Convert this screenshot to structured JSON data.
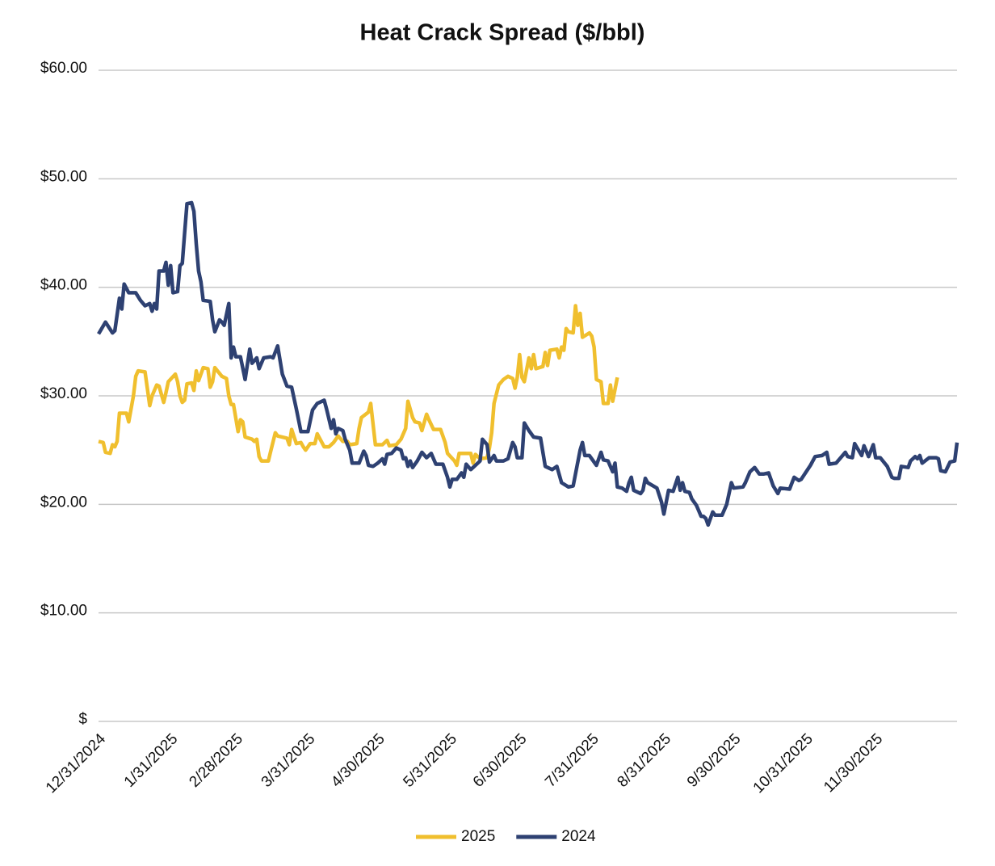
{
  "chart_data": {
    "type": "line",
    "title": "Heat Crack Spread ($/bbl)",
    "xlim": [
      0,
      369
    ],
    "xticks": [
      {
        "value": 0,
        "label": "12/31/2024"
      },
      {
        "value": 31,
        "label": "1/31/2025"
      },
      {
        "value": 59,
        "label": "2/28/2025"
      },
      {
        "value": 90,
        "label": "3/31/2025"
      },
      {
        "value": 120,
        "label": "4/30/2025"
      },
      {
        "value": 151,
        "label": "5/31/2025"
      },
      {
        "value": 181,
        "label": "6/30/2025"
      },
      {
        "value": 212,
        "label": "7/31/2025"
      },
      {
        "value": 243,
        "label": "8/31/2025"
      },
      {
        "value": 273,
        "label": "9/30/2025"
      },
      {
        "value": 304,
        "label": "10/31/2025"
      },
      {
        "value": 334,
        "label": "11/30/2025"
      }
    ],
    "ylim": [
      0,
      60
    ],
    "yticks": [
      {
        "value": 0,
        "label": "$"
      },
      {
        "value": 10,
        "label": "$10.00"
      },
      {
        "value": 20,
        "label": "$20.00"
      },
      {
        "value": 30,
        "label": "$30.00"
      },
      {
        "value": 40,
        "label": "$40.00"
      },
      {
        "value": 50,
        "label": "$50.00"
      },
      {
        "value": 60,
        "label": "$60.00"
      }
    ],
    "grid": true,
    "legend": "bottom",
    "series": [
      {
        "name": "2025",
        "color": "#f0bf2e",
        "x": [
          0,
          2,
          3,
          5,
          6,
          7,
          8,
          9,
          12,
          13,
          15,
          16,
          17,
          20,
          22,
          23,
          25,
          26,
          28,
          29,
          30,
          33,
          34,
          35,
          36,
          37,
          38,
          40,
          41,
          42,
          43,
          45,
          47,
          48,
          49,
          50,
          53,
          55,
          56,
          57,
          58,
          60,
          61,
          62,
          63,
          66,
          67,
          68,
          69,
          70,
          73,
          74,
          76,
          77,
          81,
          82,
          83,
          85,
          87,
          88,
          89,
          91,
          93,
          94,
          97,
          99,
          101,
          103,
          105,
          107,
          108,
          111,
          112,
          113,
          116,
          117,
          119,
          122,
          124,
          125,
          128,
          130,
          132,
          133,
          135,
          136,
          138,
          139,
          141,
          142,
          144,
          147,
          149,
          150,
          153,
          154,
          155,
          160,
          161,
          162,
          164,
          167,
          168,
          169,
          170,
          172,
          174,
          176,
          178,
          179,
          180,
          181,
          182,
          183,
          185,
          186,
          187,
          188,
          191,
          192,
          193,
          194,
          197,
          198,
          199,
          200,
          201,
          202,
          204,
          205,
          206,
          207,
          208,
          211,
          212,
          213,
          214,
          216,
          217,
          219,
          220,
          221,
          223
        ],
        "values": [
          25.8,
          25.7,
          24.8,
          24.7,
          25.5,
          25.3,
          25.8,
          28.4,
          28.4,
          27.6,
          30.0,
          31.8,
          32.3,
          32.2,
          29.1,
          30.0,
          31.0,
          30.9,
          29.4,
          30.3,
          31.3,
          32.0,
          31.3,
          30.0,
          29.4,
          29.6,
          31.1,
          31.2,
          30.5,
          32.3,
          31.4,
          32.6,
          32.5,
          30.8,
          31.3,
          32.6,
          31.8,
          31.6,
          30.0,
          29.2,
          29.2,
          26.7,
          27.8,
          27.6,
          26.2,
          26.0,
          25.8,
          26.0,
          24.4,
          24.0,
          24.0,
          24.9,
          26.6,
          26.3,
          26.1,
          25.5,
          26.9,
          25.6,
          25.7,
          25.3,
          25.0,
          25.6,
          25.6,
          26.5,
          25.3,
          25.3,
          25.7,
          26.3,
          25.8,
          25.8,
          25.5,
          25.6,
          27.0,
          28.0,
          28.5,
          29.3,
          25.5,
          25.5,
          25.9,
          25.4,
          25.5,
          26.0,
          27.0,
          29.5,
          28.0,
          27.6,
          27.5,
          26.8,
          28.3,
          27.8,
          26.9,
          26.9,
          25.7,
          24.7,
          24.0,
          23.6,
          24.7,
          24.7,
          23.8,
          24.6,
          24.2,
          24.3,
          25.2,
          26.6,
          29.3,
          31.0,
          31.5,
          31.8,
          31.6,
          30.7,
          31.7,
          33.8,
          31.7,
          31.3,
          33.5,
          32.5,
          33.8,
          32.5,
          32.7,
          34.0,
          32.8,
          34.2,
          34.3,
          33.5,
          34.5,
          34.2,
          36.2,
          35.9,
          35.8,
          38.3,
          36.5,
          37.6,
          35.4,
          35.8,
          35.5,
          34.5,
          31.5,
          31.3,
          29.3,
          29.3,
          31.0,
          29.5,
          31.7
        ]
      },
      {
        "name": "2024",
        "color": "#2e4172",
        "x": [
          0,
          3,
          6,
          7,
          9,
          10,
          11,
          13,
          16,
          18,
          20,
          22,
          23,
          24,
          25,
          26,
          28,
          29,
          30,
          31,
          32,
          34,
          35,
          36,
          37,
          38,
          40,
          41,
          42,
          43,
          44,
          45,
          48,
          49,
          50,
          52,
          53,
          54,
          56,
          57,
          58,
          59,
          61,
          63,
          65,
          66,
          68,
          69,
          71,
          74,
          75,
          77,
          79,
          81,
          83,
          85,
          87,
          90,
          92,
          94,
          97,
          98,
          100,
          101,
          102,
          103,
          105,
          106,
          108,
          109,
          112,
          114,
          115,
          116,
          118,
          120,
          122,
          123,
          124,
          126,
          128,
          130,
          131,
          132,
          133,
          134,
          135,
          137,
          139,
          141,
          143,
          145,
          148,
          150,
          151,
          152,
          154,
          156,
          157,
          158,
          160,
          162,
          164,
          165,
          167,
          168,
          170,
          171,
          174,
          176,
          178,
          179,
          180,
          182,
          183,
          185,
          187,
          190,
          192,
          195,
          197,
          199,
          202,
          204,
          207,
          208,
          209,
          211,
          214,
          216,
          217,
          219,
          221,
          222,
          223,
          225,
          227,
          228,
          229,
          230,
          233,
          234,
          235,
          236,
          240,
          242,
          243,
          245,
          247,
          249,
          250,
          251,
          252,
          254,
          255,
          257,
          259,
          260,
          261,
          262,
          264,
          265,
          268,
          270,
          271,
          272,
          273,
          277,
          278,
          280,
          282,
          284,
          286,
          288,
          290,
          292,
          293,
          297,
          299,
          301,
          302,
          306,
          308,
          311,
          313,
          314,
          317,
          321,
          322,
          324,
          325,
          328,
          329,
          331,
          333,
          334,
          336,
          339,
          341,
          342,
          344,
          345,
          348,
          349,
          351,
          352,
          353,
          354,
          357,
          360,
          361,
          362,
          364,
          366,
          368,
          369
        ],
        "values": [
          35.7,
          36.8,
          35.8,
          36.0,
          39.0,
          38.0,
          40.3,
          39.5,
          39.5,
          38.8,
          38.3,
          38.5,
          37.8,
          38.5,
          38.0,
          41.5,
          41.5,
          42.3,
          40.2,
          42.0,
          39.5,
          39.6,
          42.0,
          42.2,
          45.0,
          47.7,
          47.8,
          47.0,
          44.0,
          41.5,
          40.5,
          38.8,
          38.7,
          37.0,
          35.9,
          37.0,
          36.8,
          36.5,
          38.5,
          33.5,
          34.5,
          33.6,
          33.6,
          31.5,
          34.3,
          33.0,
          33.5,
          32.5,
          33.5,
          33.6,
          33.5,
          34.6,
          32.0,
          30.9,
          30.8,
          28.8,
          26.7,
          26.7,
          28.7,
          29.3,
          29.6,
          28.8,
          27.0,
          27.8,
          26.5,
          27.0,
          26.8,
          26.0,
          25.0,
          23.8,
          23.8,
          24.9,
          24.5,
          23.6,
          23.5,
          23.8,
          24.2,
          23.7,
          24.6,
          24.7,
          25.2,
          25.0,
          24.2,
          24.3,
          23.5,
          24.0,
          23.4,
          24.0,
          24.8,
          24.3,
          24.7,
          23.7,
          23.7,
          22.5,
          21.6,
          22.3,
          22.3,
          22.9,
          22.5,
          23.7,
          23.2,
          23.6,
          24.0,
          26.0,
          25.5,
          23.9,
          24.5,
          24.0,
          24.0,
          24.2,
          25.7,
          25.3,
          24.3,
          24.3,
          27.5,
          26.8,
          26.2,
          26.1,
          23.5,
          23.2,
          23.5,
          22.0,
          21.6,
          21.7,
          25.0,
          25.7,
          24.5,
          24.5,
          23.6,
          24.8,
          24.1,
          24.0,
          23.0,
          23.8,
          21.6,
          21.5,
          21.2,
          22.0,
          22.5,
          21.3,
          21.0,
          21.3,
          22.4,
          22.0,
          21.5,
          20.2,
          19.1,
          21.3,
          21.2,
          22.5,
          21.3,
          22.0,
          21.2,
          21.1,
          20.5,
          19.9,
          18.9,
          18.9,
          18.7,
          18.1,
          19.3,
          19.0,
          19.0,
          20.0,
          21.0,
          22.0,
          21.5,
          21.6,
          22.0,
          23.0,
          23.4,
          22.8,
          22.8,
          22.9,
          21.7,
          21.0,
          21.5,
          21.4,
          22.5,
          22.2,
          22.3,
          23.6,
          24.4,
          24.5,
          24.8,
          23.7,
          23.8,
          24.8,
          24.4,
          24.3,
          25.6,
          24.5,
          25.4,
          24.4,
          25.5,
          24.3,
          24.3,
          23.5,
          22.5,
          22.4,
          22.4,
          23.5,
          23.4,
          24.0,
          24.4,
          24.2,
          24.5,
          23.8,
          24.3,
          24.3,
          24.2,
          23.1,
          23.0,
          23.9,
          24.0,
          25.7
        ]
      }
    ]
  }
}
